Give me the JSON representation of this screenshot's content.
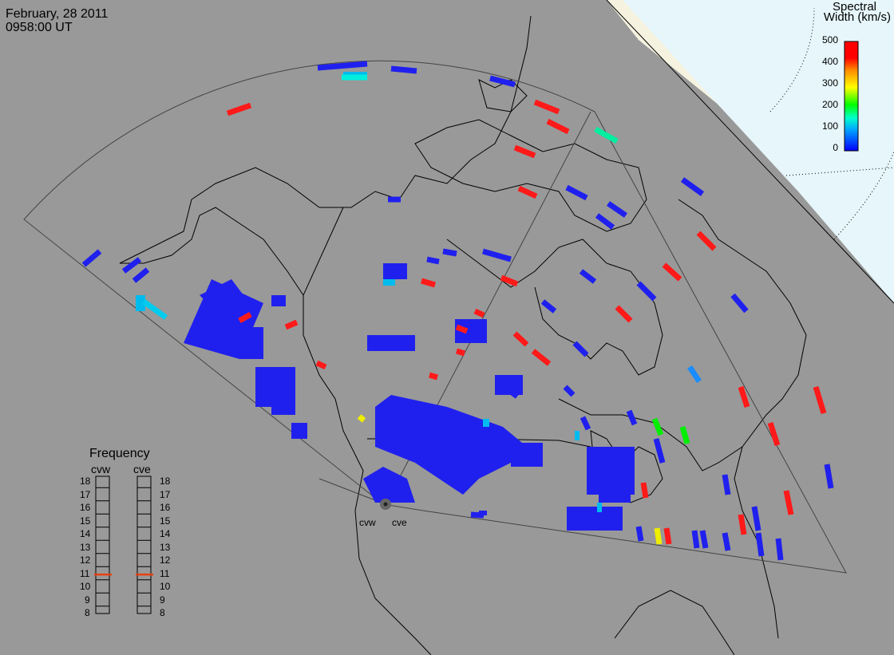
{
  "header": {
    "date": "February, 28 2011",
    "time": "0958:00 UT"
  },
  "colorbar": {
    "title_line1": "Spectral",
    "title_line2": "Width (km/s)",
    "ticks": [
      "500",
      "400",
      "300",
      "200",
      "100",
      "0"
    ],
    "colors": [
      "#0000ff",
      "#00aaff",
      "#00ffcc",
      "#00ff00",
      "#ffff00",
      "#ff8800",
      "#ff0000"
    ]
  },
  "frequency": {
    "title": "Frequency",
    "radars": [
      "cvw",
      "cve"
    ],
    "scale": [
      "18",
      "17",
      "16",
      "15",
      "14",
      "13",
      "12",
      "11",
      "10",
      "9",
      "8"
    ],
    "cvw_value": 10.9,
    "cve_value": 10.9
  },
  "sites": {
    "cvw": "cvw",
    "cve": "cve"
  },
  "colors": {
    "background": "#999999",
    "ice": "#f5f3e0",
    "polar": "#e6f6fb",
    "low": "#2020ee",
    "high": "#ff1a1a"
  }
}
